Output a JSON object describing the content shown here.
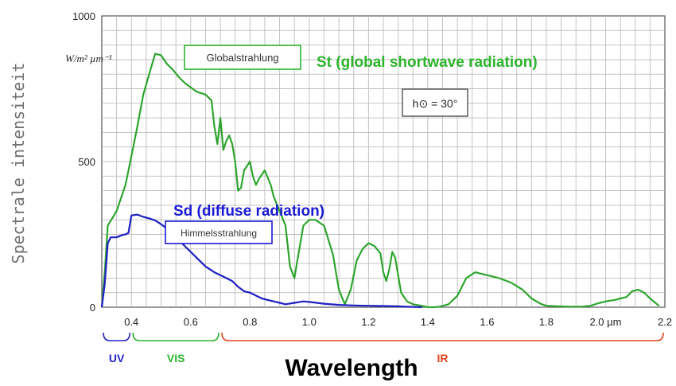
{
  "chart_data": {
    "type": "line",
    "ylabel": "Spectrale intensiteit",
    "unit_label": "W/m² µm⁻¹",
    "xlim": [
      0.3,
      2.2
    ],
    "ylim": [
      0,
      1000
    ],
    "grid": true,
    "x_ticks": [
      0.4,
      0.6,
      0.8,
      1.0,
      1.2,
      1.4,
      1.6,
      1.8,
      2.0,
      2.2
    ],
    "x_tick_labels": [
      "0.4",
      "0.6",
      "0.8",
      "1.0",
      "1.2",
      "1.4",
      "1.6",
      "1.8",
      "2.0 µm",
      "2.2"
    ],
    "y_ticks": [
      0,
      500,
      1000
    ],
    "y_tick_labels": [
      "0",
      "500",
      "1000"
    ],
    "sun_angle_label": "h⊙ = 30°",
    "series": [
      {
        "name": "Globalstrahlung",
        "color": "#2cb52c",
        "points": [
          [
            0.3,
            0
          ],
          [
            0.31,
            120
          ],
          [
            0.32,
            280
          ],
          [
            0.35,
            330
          ],
          [
            0.38,
            420
          ],
          [
            0.4,
            520
          ],
          [
            0.42,
            620
          ],
          [
            0.44,
            730
          ],
          [
            0.46,
            800
          ],
          [
            0.48,
            870
          ],
          [
            0.5,
            865
          ],
          [
            0.52,
            835
          ],
          [
            0.54,
            815
          ],
          [
            0.56,
            790
          ],
          [
            0.58,
            770
          ],
          [
            0.6,
            755
          ],
          [
            0.62,
            740
          ],
          [
            0.65,
            730
          ],
          [
            0.67,
            710
          ],
          [
            0.68,
            620
          ],
          [
            0.69,
            560
          ],
          [
            0.7,
            650
          ],
          [
            0.71,
            540
          ],
          [
            0.72,
            570
          ],
          [
            0.73,
            590
          ],
          [
            0.74,
            560
          ],
          [
            0.75,
            500
          ],
          [
            0.76,
            400
          ],
          [
            0.77,
            410
          ],
          [
            0.78,
            470
          ],
          [
            0.8,
            500
          ],
          [
            0.81,
            450
          ],
          [
            0.82,
            420
          ],
          [
            0.83,
            440
          ],
          [
            0.85,
            470
          ],
          [
            0.87,
            420
          ],
          [
            0.88,
            380
          ],
          [
            0.9,
            330
          ],
          [
            0.92,
            280
          ],
          [
            0.935,
            140
          ],
          [
            0.95,
            100
          ],
          [
            0.96,
            160
          ],
          [
            0.98,
            280
          ],
          [
            1.0,
            300
          ],
          [
            1.02,
            300
          ],
          [
            1.05,
            280
          ],
          [
            1.08,
            180
          ],
          [
            1.1,
            60
          ],
          [
            1.12,
            10
          ],
          [
            1.14,
            60
          ],
          [
            1.16,
            160
          ],
          [
            1.18,
            200
          ],
          [
            1.2,
            220
          ],
          [
            1.22,
            210
          ],
          [
            1.24,
            185
          ],
          [
            1.25,
            120
          ],
          [
            1.26,
            90
          ],
          [
            1.27,
            130
          ],
          [
            1.28,
            190
          ],
          [
            1.29,
            170
          ],
          [
            1.3,
            110
          ],
          [
            1.31,
            50
          ],
          [
            1.33,
            20
          ],
          [
            1.35,
            10
          ],
          [
            1.38,
            5
          ],
          [
            1.4,
            0
          ],
          [
            1.42,
            0
          ],
          [
            1.44,
            2
          ],
          [
            1.47,
            10
          ],
          [
            1.5,
            40
          ],
          [
            1.53,
            100
          ],
          [
            1.56,
            120
          ],
          [
            1.6,
            110
          ],
          [
            1.64,
            100
          ],
          [
            1.68,
            85
          ],
          [
            1.72,
            60
          ],
          [
            1.75,
            30
          ],
          [
            1.78,
            12
          ],
          [
            1.8,
            5
          ],
          [
            1.84,
            3
          ],
          [
            1.88,
            2
          ],
          [
            1.92,
            2
          ],
          [
            1.95,
            5
          ],
          [
            1.97,
            12
          ],
          [
            2.0,
            20
          ],
          [
            2.03,
            25
          ],
          [
            2.05,
            30
          ],
          [
            2.07,
            35
          ],
          [
            2.09,
            55
          ],
          [
            2.11,
            60
          ],
          [
            2.13,
            50
          ],
          [
            2.15,
            30
          ],
          [
            2.18,
            5
          ]
        ]
      },
      {
        "name": "Himmelsstrahlung",
        "color": "#1a1ad6",
        "points": [
          [
            0.3,
            0
          ],
          [
            0.31,
            80
          ],
          [
            0.32,
            220
          ],
          [
            0.33,
            240
          ],
          [
            0.35,
            240
          ],
          [
            0.37,
            248
          ],
          [
            0.38,
            250
          ],
          [
            0.39,
            255
          ],
          [
            0.4,
            315
          ],
          [
            0.42,
            318
          ],
          [
            0.44,
            310
          ],
          [
            0.46,
            305
          ],
          [
            0.48,
            298
          ],
          [
            0.5,
            285
          ],
          [
            0.52,
            270
          ],
          [
            0.55,
            240
          ],
          [
            0.58,
            210
          ],
          [
            0.6,
            190
          ],
          [
            0.62,
            170
          ],
          [
            0.65,
            140
          ],
          [
            0.68,
            120
          ],
          [
            0.7,
            110
          ],
          [
            0.72,
            100
          ],
          [
            0.74,
            90
          ],
          [
            0.76,
            70
          ],
          [
            0.78,
            55
          ],
          [
            0.8,
            50
          ],
          [
            0.82,
            40
          ],
          [
            0.84,
            30
          ],
          [
            0.86,
            25
          ],
          [
            0.88,
            20
          ],
          [
            0.9,
            15
          ],
          [
            0.92,
            10
          ],
          [
            0.95,
            15
          ],
          [
            0.98,
            20
          ],
          [
            1.0,
            18
          ],
          [
            1.05,
            12
          ],
          [
            1.1,
            8
          ],
          [
            1.15,
            6
          ],
          [
            1.2,
            5
          ],
          [
            1.25,
            4
          ],
          [
            1.3,
            3
          ],
          [
            1.38,
            0
          ]
        ]
      }
    ]
  },
  "annotations": {
    "global_box": "Globalstrahlung",
    "global_caption": "St (global shortwave radiation)",
    "diffuse_box": "Himmelsstrahlung",
    "diffuse_caption": "Sd (diffuse radiation)"
  },
  "bands": [
    {
      "label": "UV",
      "from": 0.3,
      "to": 0.4,
      "color": "#2323c8"
    },
    {
      "label": "VIS",
      "from": 0.4,
      "to": 0.7,
      "color": "#2cb52c"
    },
    {
      "label": "IR",
      "from": 0.7,
      "to": 2.2,
      "color": "#e0431e"
    }
  ],
  "x_axis_title": "Wavelength"
}
